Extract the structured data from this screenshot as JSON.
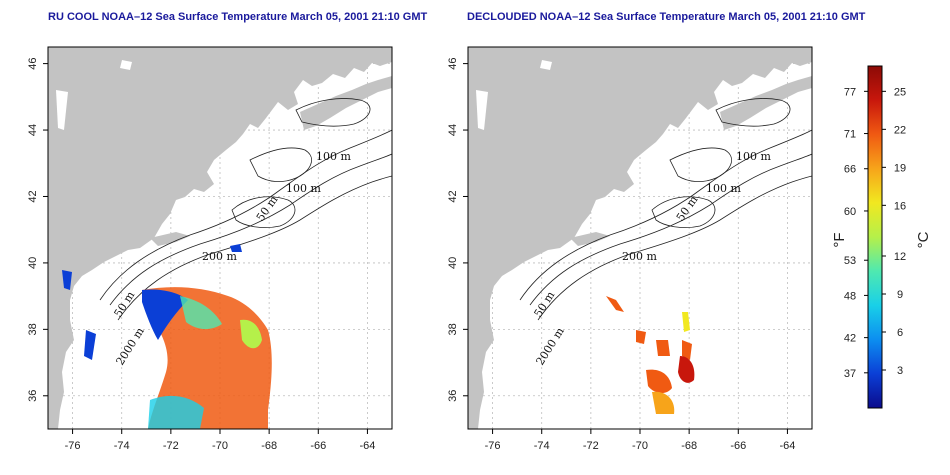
{
  "left_map": {
    "title": "RU COOL NOAA–12 Sea Surface Temperature March 05, 2001 21:10 GMT",
    "x_ticks": [
      "-76",
      "-74",
      "-72",
      "-70",
      "-68",
      "-66",
      "-64"
    ],
    "y_ticks": [
      "36",
      "38",
      "40",
      "42",
      "44",
      "46"
    ],
    "contour_labels": {
      "c100a": "100 m",
      "c100b": "100 m",
      "c50a": "50 m",
      "c200": "200 m",
      "c50b": "50 m",
      "c2000": "2000 m"
    }
  },
  "right_map": {
    "title": "DECLOUDED NOAA–12 Sea Surface Temperature March 05, 2001 21:10 GMT",
    "x_ticks": [
      "-76",
      "-74",
      "-72",
      "-70",
      "-68",
      "-66",
      "-64"
    ],
    "y_ticks": [
      "36",
      "38",
      "40",
      "42",
      "44",
      "46"
    ],
    "contour_labels": {
      "c100a": "100 m",
      "c100b": "100 m",
      "c50a": "50 m",
      "c200": "200 m",
      "c50b": "50 m",
      "c2000": "2000 m"
    }
  },
  "colorbar": {
    "fahrenheit_unit": "°F",
    "celsius_unit": "°C",
    "fahrenheit_ticks": [
      "77",
      "71",
      "66",
      "60",
      "53",
      "48",
      "42",
      "37"
    ],
    "celsius_ticks": [
      "25",
      "22",
      "19",
      "16",
      "12",
      "9",
      "6",
      "3"
    ],
    "colors": [
      "#0b0b8c",
      "#0b3fd6",
      "#0c8ef0",
      "#19d0e8",
      "#4fe9b0",
      "#b5f04a",
      "#f1e820",
      "#f7a41a",
      "#f05a12",
      "#c8170c",
      "#8c0a06"
    ]
  },
  "colors": {
    "land": "#c3c3c3",
    "title": "#1a1a9c"
  }
}
